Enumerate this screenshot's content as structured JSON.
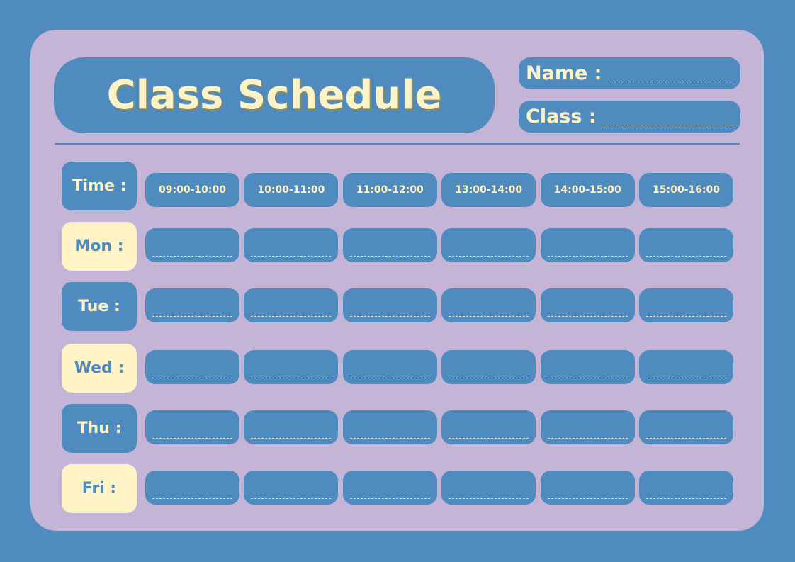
{
  "title": "Class Schedule",
  "fields": {
    "name_label": "Name :",
    "class_label": "Class :"
  },
  "time_label": "Time :",
  "time_slots": [
    "09:00-10:00",
    "10:00-11:00",
    "11:00-12:00",
    "13:00-14:00",
    "14:00-15:00",
    "15:00-16:00"
  ],
  "days": [
    "Mon :",
    "Tue :",
    "Wed :",
    "Thu :",
    "Fri :"
  ],
  "colors": {
    "background": "#4f8bbf",
    "card": "#c4b4d6",
    "cream": "#fdf3c6"
  }
}
